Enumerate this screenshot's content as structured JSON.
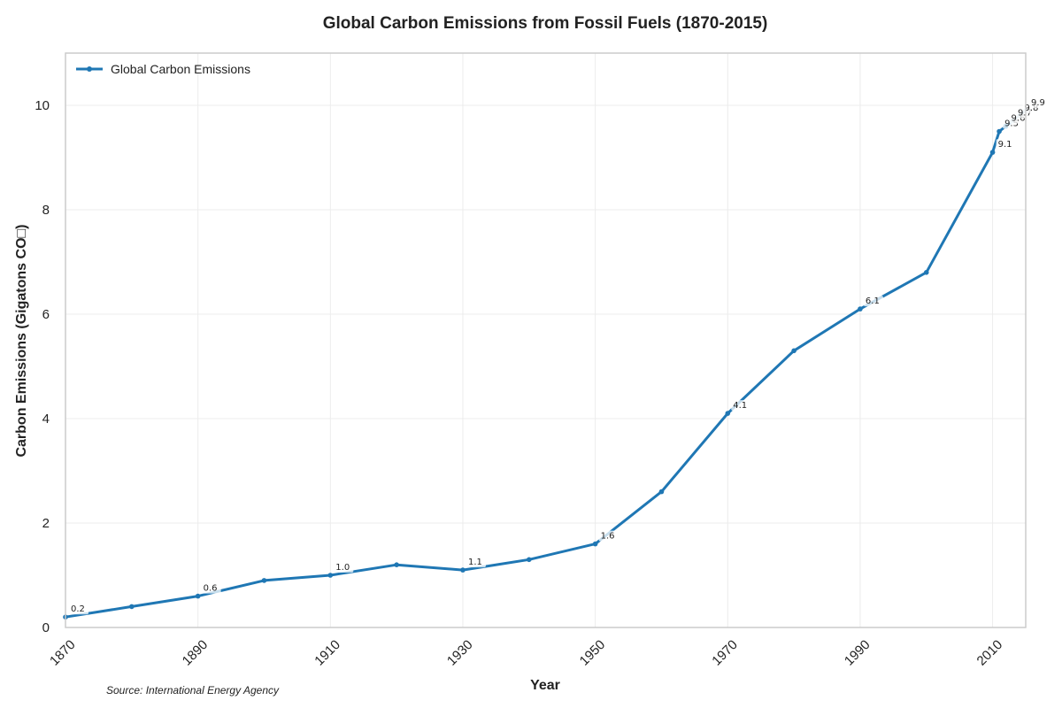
{
  "chart_data": {
    "type": "line",
    "title": "Global Carbon Emissions from Fossil Fuels (1870-2015)",
    "xlabel": "Year",
    "ylabel": "Carbon Emissions (Gigatons CO□)",
    "source": "Source: International Energy Agency",
    "xlim": [
      1870,
      2015
    ],
    "ylim": [
      0,
      11
    ],
    "x_ticks": [
      1870,
      1890,
      1910,
      1930,
      1950,
      1970,
      1990,
      2010
    ],
    "y_ticks": [
      0,
      2,
      4,
      6,
      8,
      10
    ],
    "grid": true,
    "legend_position": "top-left",
    "color": "#1f77b4",
    "series": [
      {
        "name": "Global Carbon Emissions",
        "x": [
          1870,
          1880,
          1890,
          1900,
          1910,
          1920,
          1930,
          1940,
          1950,
          1960,
          1970,
          1980,
          1990,
          2000,
          2010,
          2011,
          2012,
          2013,
          2014,
          2015
        ],
        "values": [
          0.2,
          0.4,
          0.6,
          0.9,
          1.0,
          1.2,
          1.1,
          1.3,
          1.6,
          2.6,
          4.1,
          5.3,
          6.1,
          6.8,
          9.1,
          9.5,
          9.6,
          9.7,
          9.8,
          9.9
        ]
      }
    ],
    "annotations": [
      {
        "x": 1870,
        "text": "0.2"
      },
      {
        "x": 1890,
        "text": "0.6"
      },
      {
        "x": 1910,
        "text": "1.0"
      },
      {
        "x": 1930,
        "text": "1.1"
      },
      {
        "x": 1950,
        "text": "1.6"
      },
      {
        "x": 1970,
        "text": "4.1"
      },
      {
        "x": 1990,
        "text": "6.1"
      },
      {
        "x": 2010,
        "text": "9.1"
      },
      {
        "x": 2011,
        "text": "9.5"
      },
      {
        "x": 2012,
        "text": "9.6"
      },
      {
        "x": 2013,
        "text": "9.7"
      },
      {
        "x": 2014,
        "text": "9.8"
      },
      {
        "x": 2015,
        "text": "9.9"
      }
    ]
  }
}
